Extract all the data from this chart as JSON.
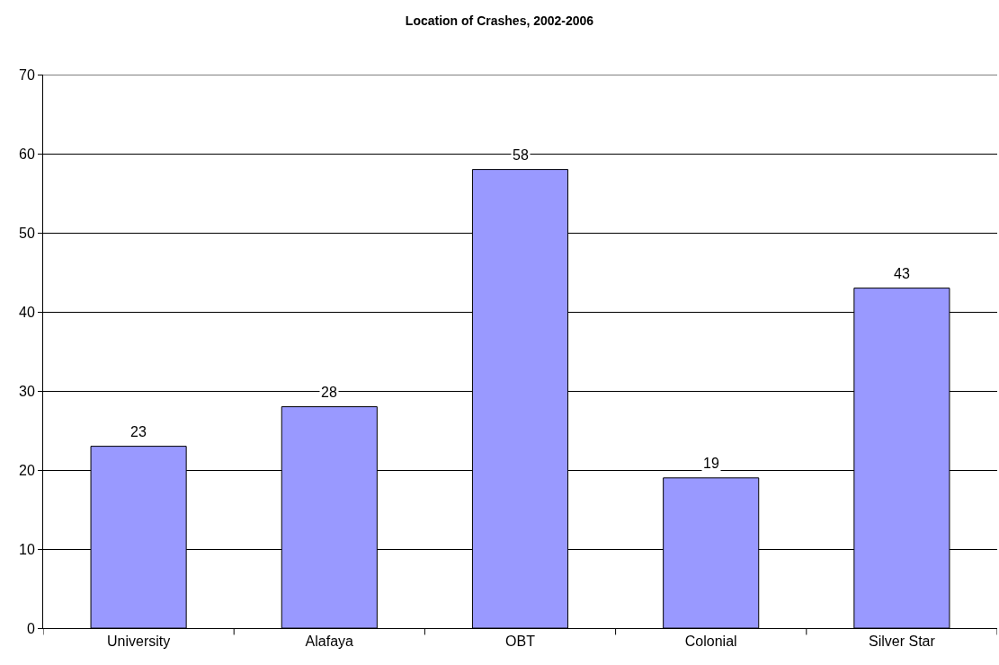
{
  "chart_data": {
    "type": "bar",
    "title": "Location of Crashes, 2002-2006",
    "categories": [
      "University",
      "Alafaya",
      "OBT",
      "Colonial",
      "Silver Star"
    ],
    "values": [
      23,
      28,
      58,
      19,
      43
    ],
    "color": "#9999ff",
    "ylim": [
      0,
      70
    ],
    "yticks": [
      0,
      10,
      20,
      30,
      40,
      50,
      60,
      70
    ],
    "grid": "y",
    "data_labels": true
  }
}
